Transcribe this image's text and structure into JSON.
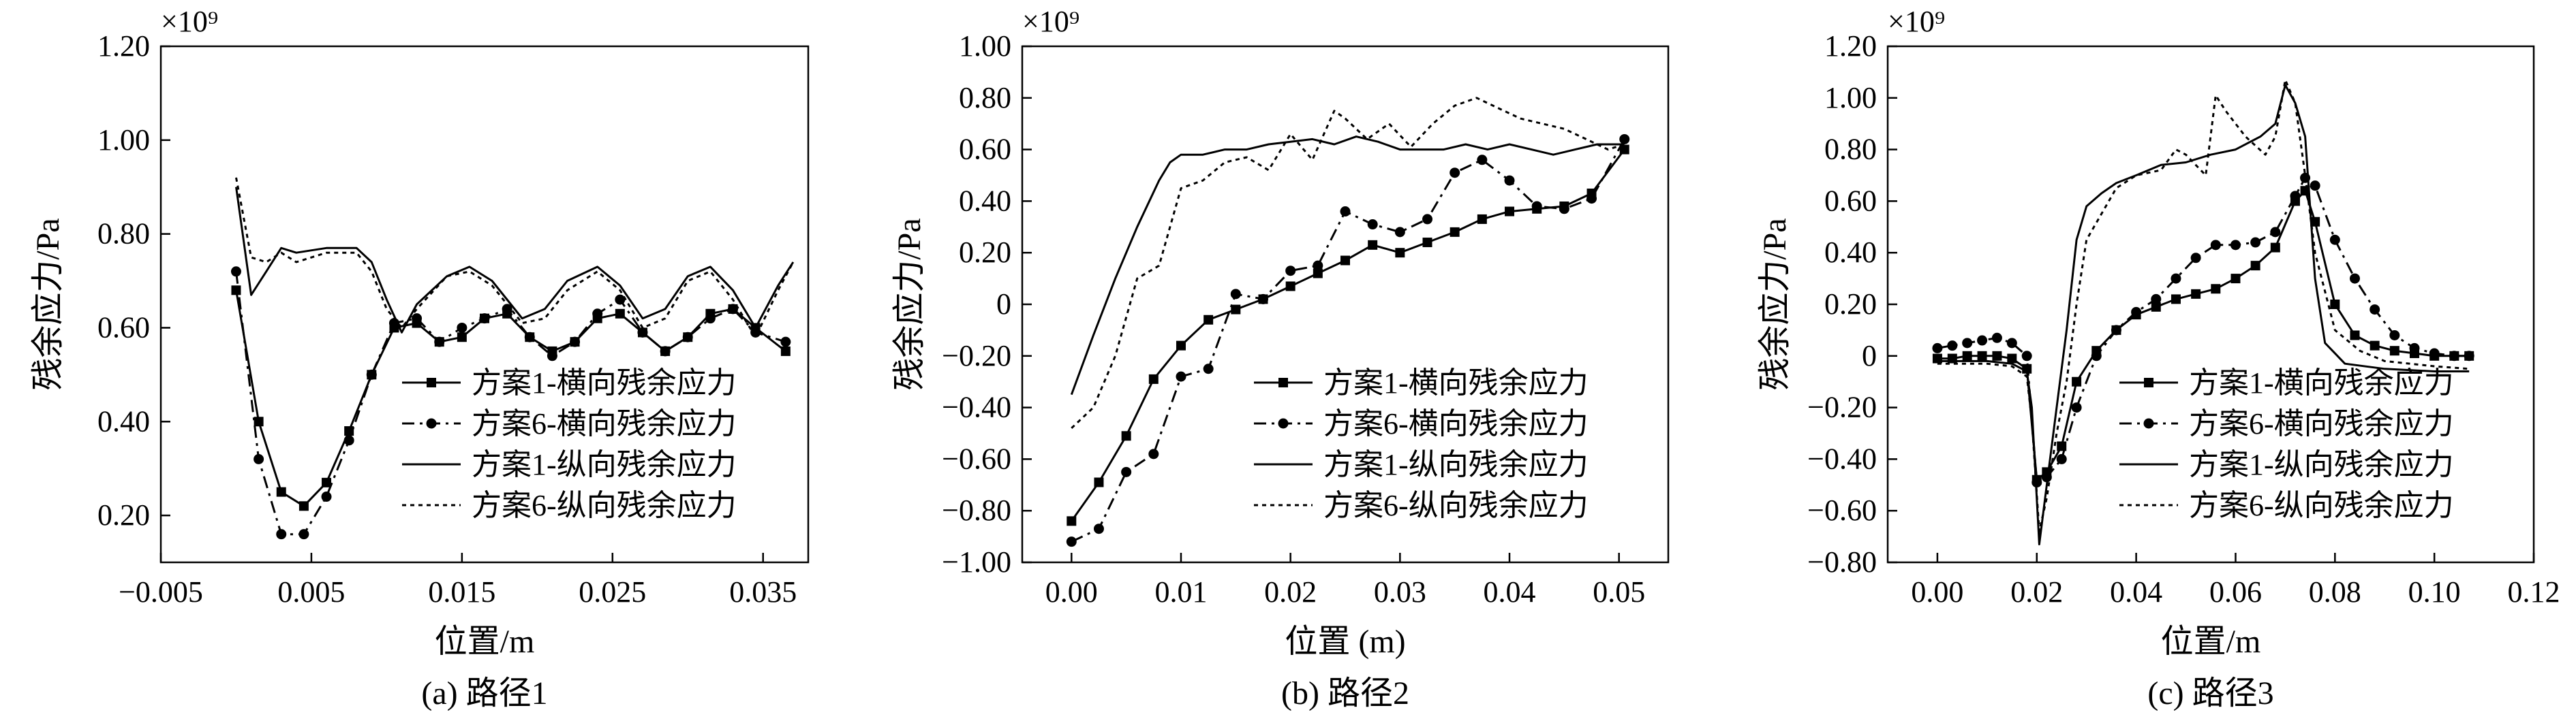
{
  "figure": {
    "background": "#ffffff",
    "line_color": "#000000",
    "legend_line_styles": [
      "solid-square",
      "dashdot-dot",
      "solid",
      "dotted"
    ]
  },
  "chart_data": [
    {
      "type": "line",
      "caption": "(a) 路径1",
      "xlabel": "位置/m",
      "ylabel": "残余应力/Pa",
      "exponent_label": "×10⁹",
      "xlim": [
        -0.005,
        0.038
      ],
      "ylim": [
        0.1,
        1.2
      ],
      "xticks": [
        -0.005,
        0.005,
        0.015,
        0.025,
        0.035
      ],
      "xtick_labels": [
        "−0.005",
        "0.005",
        "0.015",
        "0.025",
        "0.035"
      ],
      "yticks": [
        0.2,
        0.4,
        0.6,
        0.8,
        1.0,
        1.2
      ],
      "ytick_labels": [
        "0.20",
        "0.40",
        "0.60",
        "0.80",
        "1.00",
        "1.20"
      ],
      "legend_position": "lower-right",
      "series": [
        {
          "name": "方案1-横向残余应力",
          "style": "solid-square",
          "x": [
            0,
            0.0015,
            0.003,
            0.0045,
            0.006,
            0.0075,
            0.009,
            0.0105,
            0.012,
            0.0135,
            0.015,
            0.0165,
            0.018,
            0.0195,
            0.021,
            0.0225,
            0.024,
            0.0255,
            0.027,
            0.0285,
            0.03,
            0.0315,
            0.033,
            0.0345,
            0.0365
          ],
          "y": [
            0.68,
            0.4,
            0.25,
            0.22,
            0.27,
            0.38,
            0.5,
            0.6,
            0.61,
            0.57,
            0.58,
            0.62,
            0.63,
            0.58,
            0.55,
            0.57,
            0.62,
            0.63,
            0.59,
            0.55,
            0.58,
            0.63,
            0.64,
            0.6,
            0.55
          ]
        },
        {
          "name": "方案6-横向残余应力",
          "style": "dashdot-dot",
          "x": [
            0,
            0.0015,
            0.003,
            0.0045,
            0.006,
            0.0075,
            0.009,
            0.0105,
            0.012,
            0.0135,
            0.015,
            0.0165,
            0.018,
            0.0195,
            0.021,
            0.0225,
            0.024,
            0.0255,
            0.027,
            0.0285,
            0.03,
            0.0315,
            0.033,
            0.0345,
            0.0365
          ],
          "y": [
            0.72,
            0.32,
            0.16,
            0.16,
            0.24,
            0.36,
            0.5,
            0.61,
            0.62,
            0.57,
            0.6,
            0.62,
            0.64,
            0.58,
            0.54,
            0.57,
            0.63,
            0.66,
            0.59,
            0.55,
            0.58,
            0.62,
            0.64,
            0.59,
            0.57
          ]
        },
        {
          "name": "方案1-纵向残余应力",
          "style": "solid",
          "x": [
            0,
            0.001,
            0.002,
            0.003,
            0.004,
            0.006,
            0.008,
            0.009,
            0.01,
            0.011,
            0.012,
            0.014,
            0.0155,
            0.017,
            0.019,
            0.0205,
            0.022,
            0.024,
            0.0255,
            0.027,
            0.0285,
            0.03,
            0.0315,
            0.033,
            0.0345,
            0.036,
            0.037
          ],
          "y": [
            0.9,
            0.67,
            0.72,
            0.77,
            0.76,
            0.77,
            0.77,
            0.74,
            0.66,
            0.59,
            0.65,
            0.71,
            0.73,
            0.7,
            0.62,
            0.64,
            0.7,
            0.73,
            0.69,
            0.62,
            0.64,
            0.71,
            0.73,
            0.68,
            0.6,
            0.69,
            0.74
          ]
        },
        {
          "name": "方案6-纵向残余应力",
          "style": "dotted",
          "x": [
            0,
            0.001,
            0.002,
            0.003,
            0.004,
            0.006,
            0.008,
            0.009,
            0.01,
            0.011,
            0.012,
            0.014,
            0.0155,
            0.017,
            0.019,
            0.0205,
            0.022,
            0.024,
            0.0255,
            0.027,
            0.0285,
            0.03,
            0.0315,
            0.033,
            0.0345,
            0.036,
            0.037
          ],
          "y": [
            0.92,
            0.75,
            0.74,
            0.76,
            0.74,
            0.76,
            0.76,
            0.72,
            0.64,
            0.6,
            0.64,
            0.71,
            0.72,
            0.69,
            0.61,
            0.62,
            0.68,
            0.72,
            0.68,
            0.6,
            0.62,
            0.7,
            0.72,
            0.66,
            0.58,
            0.68,
            0.74
          ]
        }
      ]
    },
    {
      "type": "line",
      "caption": "(b) 路径2",
      "xlabel": "位置 (m)",
      "ylabel": "残余应力/Pa",
      "exponent_label": "×10⁹",
      "xlim": [
        -0.0045,
        0.0545
      ],
      "ylim": [
        -1.0,
        1.0
      ],
      "xticks": [
        0,
        0.01,
        0.02,
        0.03,
        0.04,
        0.05
      ],
      "xtick_labels": [
        "0.00",
        "0.01",
        "0.02",
        "0.03",
        "0.04",
        "0.05"
      ],
      "yticks": [
        -1.0,
        -0.8,
        -0.6,
        -0.4,
        -0.2,
        0,
        0.2,
        0.4,
        0.6,
        0.8,
        1.0
      ],
      "ytick_labels": [
        "−1.00",
        "−0.80",
        "−0.60",
        "−0.40",
        "−0.20",
        "0",
        "0.20",
        "0.40",
        "0.60",
        "0.80",
        "1.00"
      ],
      "legend_position": "lower-right",
      "series": [
        {
          "name": "方案1-横向残余应力",
          "style": "solid-square",
          "x": [
            0,
            0.0025,
            0.005,
            0.0075,
            0.01,
            0.0125,
            0.015,
            0.0175,
            0.02,
            0.0225,
            0.025,
            0.0275,
            0.03,
            0.0325,
            0.035,
            0.0375,
            0.04,
            0.0425,
            0.045,
            0.0475,
            0.0505
          ],
          "y": [
            -0.84,
            -0.69,
            -0.51,
            -0.29,
            -0.16,
            -0.06,
            -0.02,
            0.02,
            0.07,
            0.12,
            0.17,
            0.23,
            0.2,
            0.24,
            0.28,
            0.33,
            0.36,
            0.37,
            0.38,
            0.43,
            0.6
          ]
        },
        {
          "name": "方案6-横向残余应力",
          "style": "dashdot-dot",
          "x": [
            0,
            0.0025,
            0.005,
            0.0075,
            0.01,
            0.0125,
            0.015,
            0.0175,
            0.02,
            0.0225,
            0.025,
            0.0275,
            0.03,
            0.0325,
            0.035,
            0.0375,
            0.04,
            0.0425,
            0.045,
            0.0475,
            0.0505
          ],
          "y": [
            -0.92,
            -0.87,
            -0.65,
            -0.58,
            -0.28,
            -0.25,
            0.04,
            0.02,
            0.13,
            0.15,
            0.36,
            0.31,
            0.28,
            0.33,
            0.51,
            0.56,
            0.48,
            0.38,
            0.37,
            0.41,
            0.64
          ]
        },
        {
          "name": "方案1-纵向残余应力",
          "style": "solid",
          "x": [
            0,
            0.002,
            0.004,
            0.006,
            0.008,
            0.009,
            0.01,
            0.012,
            0.014,
            0.016,
            0.018,
            0.02,
            0.022,
            0.024,
            0.026,
            0.028,
            0.03,
            0.032,
            0.034,
            0.036,
            0.038,
            0.04,
            0.042,
            0.044,
            0.046,
            0.048,
            0.0505
          ],
          "y": [
            -0.35,
            -0.12,
            0.1,
            0.3,
            0.48,
            0.55,
            0.58,
            0.58,
            0.6,
            0.6,
            0.62,
            0.63,
            0.64,
            0.62,
            0.65,
            0.63,
            0.6,
            0.6,
            0.6,
            0.62,
            0.6,
            0.62,
            0.6,
            0.58,
            0.6,
            0.62,
            0.62
          ]
        },
        {
          "name": "方案6-纵向残余应力",
          "style": "dotted",
          "x": [
            0,
            0.002,
            0.004,
            0.006,
            0.008,
            0.01,
            0.012,
            0.014,
            0.016,
            0.018,
            0.02,
            0.022,
            0.024,
            0.025,
            0.027,
            0.029,
            0.031,
            0.033,
            0.035,
            0.037,
            0.039,
            0.041,
            0.043,
            0.045,
            0.047,
            0.049,
            0.0505
          ],
          "y": [
            -0.48,
            -0.4,
            -0.2,
            0.1,
            0.15,
            0.45,
            0.48,
            0.55,
            0.57,
            0.52,
            0.66,
            0.56,
            0.75,
            0.72,
            0.64,
            0.7,
            0.61,
            0.7,
            0.77,
            0.8,
            0.76,
            0.72,
            0.7,
            0.68,
            0.64,
            0.6,
            0.62
          ]
        }
      ]
    },
    {
      "type": "line",
      "caption": "(c) 路径3",
      "xlabel": "位置/m",
      "ylabel": "残余应力/Pa",
      "exponent_label": "×10⁹",
      "xlim": [
        -0.01,
        0.12
      ],
      "ylim": [
        -0.8,
        1.2
      ],
      "xticks": [
        0,
        0.02,
        0.04,
        0.06,
        0.08,
        0.1,
        0.12
      ],
      "xtick_labels": [
        "0.00",
        "0.02",
        "0.04",
        "0.06",
        "0.08",
        "0.10",
        "0.12"
      ],
      "yticks": [
        -0.8,
        -0.6,
        -0.4,
        -0.2,
        0,
        0.2,
        0.4,
        0.6,
        0.8,
        1.0,
        1.2
      ],
      "ytick_labels": [
        "−0.80",
        "−0.60",
        "−0.40",
        "−0.20",
        "0",
        "0.20",
        "0.40",
        "0.60",
        "0.80",
        "1.00",
        "1.20"
      ],
      "legend_position": "lower-right",
      "series": [
        {
          "name": "方案1-横向残余应力",
          "style": "solid-square",
          "x": [
            0,
            0.003,
            0.006,
            0.009,
            0.012,
            0.015,
            0.018,
            0.02,
            0.022,
            0.025,
            0.028,
            0.032,
            0.036,
            0.04,
            0.044,
            0.048,
            0.052,
            0.056,
            0.06,
            0.064,
            0.068,
            0.072,
            0.074,
            0.076,
            0.08,
            0.084,
            0.088,
            0.092,
            0.096,
            0.1,
            0.104,
            0.107
          ],
          "y": [
            -0.01,
            -0.01,
            0,
            0,
            0,
            -0.01,
            -0.05,
            -0.48,
            -0.45,
            -0.35,
            -0.1,
            0.02,
            0.1,
            0.16,
            0.19,
            0.22,
            0.24,
            0.26,
            0.3,
            0.35,
            0.42,
            0.6,
            0.64,
            0.52,
            0.2,
            0.08,
            0.04,
            0.02,
            0.01,
            0,
            0,
            0
          ]
        },
        {
          "name": "方案6-横向残余应力",
          "style": "dashdot-dot",
          "x": [
            0,
            0.003,
            0.006,
            0.009,
            0.012,
            0.015,
            0.018,
            0.02,
            0.022,
            0.025,
            0.028,
            0.032,
            0.036,
            0.04,
            0.044,
            0.048,
            0.052,
            0.056,
            0.06,
            0.064,
            0.068,
            0.072,
            0.074,
            0.076,
            0.08,
            0.084,
            0.088,
            0.092,
            0.096,
            0.1,
            0.104,
            0.107
          ],
          "y": [
            0.03,
            0.04,
            0.05,
            0.06,
            0.07,
            0.05,
            0,
            -0.49,
            -0.47,
            -0.4,
            -0.2,
            0,
            0.1,
            0.17,
            0.22,
            0.3,
            0.38,
            0.43,
            0.43,
            0.44,
            0.48,
            0.62,
            0.69,
            0.66,
            0.45,
            0.3,
            0.18,
            0.08,
            0.03,
            0.01,
            0,
            0
          ]
        },
        {
          "name": "方案1-纵向残余应力",
          "style": "solid",
          "x": [
            0,
            0.005,
            0.01,
            0.015,
            0.018,
            0.019,
            0.0205,
            0.022,
            0.024,
            0.026,
            0.028,
            0.03,
            0.033,
            0.036,
            0.04,
            0.045,
            0.05,
            0.055,
            0.06,
            0.065,
            0.068,
            0.07,
            0.072,
            0.074,
            0.076,
            0.078,
            0.082,
            0.09,
            0.1,
            0.107
          ],
          "y": [
            -0.02,
            -0.02,
            -0.02,
            -0.03,
            -0.06,
            -0.2,
            -0.73,
            -0.5,
            -0.2,
            0.1,
            0.45,
            0.58,
            0.63,
            0.67,
            0.7,
            0.74,
            0.75,
            0.78,
            0.8,
            0.85,
            0.9,
            1.05,
            0.98,
            0.85,
            0.3,
            0.05,
            -0.03,
            -0.05,
            -0.06,
            -0.06
          ]
        },
        {
          "name": "方案6-纵向残余应力",
          "style": "dotted",
          "x": [
            0,
            0.005,
            0.01,
            0.015,
            0.018,
            0.019,
            0.0205,
            0.022,
            0.024,
            0.026,
            0.028,
            0.03,
            0.033,
            0.036,
            0.04,
            0.045,
            0.048,
            0.05,
            0.054,
            0.056,
            0.058,
            0.062,
            0.066,
            0.068,
            0.07,
            0.072,
            0.074,
            0.076,
            0.08,
            0.085,
            0.09,
            0.1,
            0.107
          ],
          "y": [
            -0.03,
            -0.03,
            -0.03,
            -0.04,
            -0.08,
            -0.25,
            -0.68,
            -0.55,
            -0.3,
            -0.1,
            0.2,
            0.45,
            0.55,
            0.65,
            0.7,
            0.72,
            0.8,
            0.78,
            0.7,
            1.01,
            0.95,
            0.85,
            0.78,
            0.85,
            1.07,
            0.98,
            0.7,
            0.4,
            0.1,
            0.02,
            -0.02,
            -0.04,
            -0.05
          ]
        }
      ]
    }
  ]
}
